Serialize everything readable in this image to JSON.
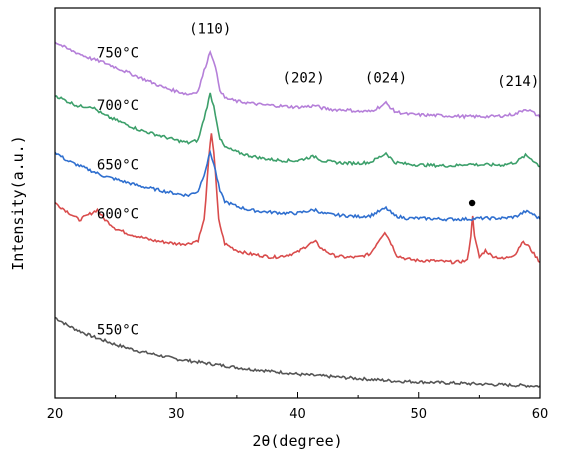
{
  "chart_data": {
    "type": "line",
    "xlabel": "2θ(degree)",
    "ylabel": "Intensity(a.u.)",
    "xlim": [
      20,
      60
    ],
    "xticks": [
      20,
      30,
      40,
      50,
      60
    ],
    "yticks": "none",
    "grid": false,
    "legend": "none",
    "series": [
      {
        "name": "550°C",
        "color": "#555555",
        "points": [
          [
            20,
            0.95
          ],
          [
            21,
            0.86
          ],
          [
            22,
            0.79
          ],
          [
            23,
            0.73
          ],
          [
            24,
            0.68
          ],
          [
            25,
            0.63
          ],
          [
            26,
            0.59
          ],
          [
            27,
            0.55
          ],
          [
            28,
            0.52
          ],
          [
            29,
            0.49
          ],
          [
            30,
            0.46
          ],
          [
            31,
            0.44
          ],
          [
            32,
            0.42
          ],
          [
            33,
            0.4
          ],
          [
            34,
            0.38
          ],
          [
            35,
            0.36
          ],
          [
            36,
            0.34
          ],
          [
            37,
            0.33
          ],
          [
            38,
            0.31
          ],
          [
            39,
            0.3
          ],
          [
            40,
            0.28
          ],
          [
            42,
            0.26
          ],
          [
            44,
            0.24
          ],
          [
            46,
            0.22
          ],
          [
            48,
            0.2
          ],
          [
            50,
            0.19
          ],
          [
            52,
            0.18
          ],
          [
            54,
            0.17
          ],
          [
            56,
            0.16
          ],
          [
            58,
            0.15
          ],
          [
            60,
            0.14
          ]
        ]
      },
      {
        "name": "600°C",
        "color": "#d94c4c",
        "points": [
          [
            20,
            2.3
          ],
          [
            21,
            2.2
          ],
          [
            22,
            2.1
          ],
          [
            23,
            2.18
          ],
          [
            23.5,
            2.22
          ],
          [
            24,
            2.12
          ],
          [
            25,
            2.0
          ],
          [
            26,
            1.94
          ],
          [
            27,
            1.9
          ],
          [
            28,
            1.86
          ],
          [
            29,
            1.84
          ],
          [
            30,
            1.82
          ],
          [
            31,
            1.82
          ],
          [
            31.8,
            1.86
          ],
          [
            32.3,
            2.1
          ],
          [
            32.7,
            2.85
          ],
          [
            32.9,
            3.13
          ],
          [
            33.1,
            2.9
          ],
          [
            33.5,
            2.1
          ],
          [
            34,
            1.82
          ],
          [
            35,
            1.74
          ],
          [
            36,
            1.7
          ],
          [
            37,
            1.68
          ],
          [
            38,
            1.66
          ],
          [
            39,
            1.68
          ],
          [
            40,
            1.72
          ],
          [
            41,
            1.82
          ],
          [
            41.5,
            1.84
          ],
          [
            42,
            1.76
          ],
          [
            43,
            1.68
          ],
          [
            44,
            1.66
          ],
          [
            45,
            1.66
          ],
          [
            46,
            1.7
          ],
          [
            46.8,
            1.88
          ],
          [
            47.2,
            1.96
          ],
          [
            47.6,
            1.86
          ],
          [
            48.2,
            1.68
          ],
          [
            49,
            1.64
          ],
          [
            50,
            1.62
          ],
          [
            51,
            1.62
          ],
          [
            52,
            1.61
          ],
          [
            53,
            1.6
          ],
          [
            54,
            1.62
          ],
          [
            54.3,
            1.92
          ],
          [
            54.45,
            2.16
          ],
          [
            54.6,
            1.9
          ],
          [
            55,
            1.66
          ],
          [
            55.5,
            1.74
          ],
          [
            56,
            1.68
          ],
          [
            57,
            1.64
          ],
          [
            58,
            1.7
          ],
          [
            58.5,
            1.84
          ],
          [
            59,
            1.8
          ],
          [
            60,
            1.6
          ]
        ]
      },
      {
        "name": "650°C",
        "color": "#2f6fcf",
        "points": [
          [
            20,
            2.9
          ],
          [
            21,
            2.8
          ],
          [
            22,
            2.74
          ],
          [
            23,
            2.68
          ],
          [
            24,
            2.62
          ],
          [
            25,
            2.58
          ],
          [
            26,
            2.54
          ],
          [
            27,
            2.5
          ],
          [
            28,
            2.47
          ],
          [
            29,
            2.44
          ],
          [
            30,
            2.41
          ],
          [
            31,
            2.39
          ],
          [
            31.8,
            2.44
          ],
          [
            32.3,
            2.64
          ],
          [
            32.8,
            2.9
          ],
          [
            33.1,
            2.76
          ],
          [
            33.6,
            2.44
          ],
          [
            34,
            2.32
          ],
          [
            35,
            2.26
          ],
          [
            36,
            2.22
          ],
          [
            37,
            2.2
          ],
          [
            38,
            2.19
          ],
          [
            39,
            2.18
          ],
          [
            40,
            2.18
          ],
          [
            41,
            2.21
          ],
          [
            41.5,
            2.22
          ],
          [
            42,
            2.18
          ],
          [
            43,
            2.16
          ],
          [
            44,
            2.15
          ],
          [
            45,
            2.14
          ],
          [
            46,
            2.15
          ],
          [
            47,
            2.22
          ],
          [
            47.3,
            2.24
          ],
          [
            48,
            2.15
          ],
          [
            49,
            2.12
          ],
          [
            50,
            2.12
          ],
          [
            52,
            2.11
          ],
          [
            54,
            2.11
          ],
          [
            55,
            2.12
          ],
          [
            56,
            2.12
          ],
          [
            57,
            2.12
          ],
          [
            58,
            2.14
          ],
          [
            58.8,
            2.2
          ],
          [
            59.3,
            2.18
          ],
          [
            60,
            2.11
          ]
        ]
      },
      {
        "name": "700°C",
        "color": "#3c9f6a",
        "points": [
          [
            20,
            3.57
          ],
          [
            21,
            3.5
          ],
          [
            22,
            3.44
          ],
          [
            23,
            3.44
          ],
          [
            24,
            3.34
          ],
          [
            25,
            3.28
          ],
          [
            26,
            3.22
          ],
          [
            27,
            3.16
          ],
          [
            28,
            3.12
          ],
          [
            29,
            3.08
          ],
          [
            30,
            3.04
          ],
          [
            31,
            3.01
          ],
          [
            31.8,
            3.04
          ],
          [
            32.3,
            3.3
          ],
          [
            32.8,
            3.59
          ],
          [
            33.1,
            3.44
          ],
          [
            33.6,
            3.06
          ],
          [
            34,
            2.96
          ],
          [
            35,
            2.9
          ],
          [
            36,
            2.86
          ],
          [
            37,
            2.83
          ],
          [
            38,
            2.81
          ],
          [
            39,
            2.8
          ],
          [
            40,
            2.8
          ],
          [
            41,
            2.84
          ],
          [
            41.5,
            2.85
          ],
          [
            42,
            2.8
          ],
          [
            43,
            2.78
          ],
          [
            44,
            2.77
          ],
          [
            45,
            2.77
          ],
          [
            46,
            2.78
          ],
          [
            47,
            2.86
          ],
          [
            47.3,
            2.89
          ],
          [
            48,
            2.78
          ],
          [
            49,
            2.76
          ],
          [
            50,
            2.75
          ],
          [
            52,
            2.74
          ],
          [
            53,
            2.74
          ],
          [
            54,
            2.76
          ],
          [
            55,
            2.75
          ],
          [
            56,
            2.75
          ],
          [
            57,
            2.75
          ],
          [
            58,
            2.78
          ],
          [
            58.8,
            2.86
          ],
          [
            59.3,
            2.82
          ],
          [
            60,
            2.73
          ]
        ]
      },
      {
        "name": "750°C",
        "color": "#b57fd9",
        "points": [
          [
            20,
            4.2
          ],
          [
            21,
            4.12
          ],
          [
            22,
            4.06
          ],
          [
            23,
            4.0
          ],
          [
            24,
            3.96
          ],
          [
            25,
            3.9
          ],
          [
            26,
            3.84
          ],
          [
            27,
            3.78
          ],
          [
            28,
            3.72
          ],
          [
            29,
            3.66
          ],
          [
            30,
            3.62
          ],
          [
            31,
            3.58
          ],
          [
            31.8,
            3.62
          ],
          [
            32.3,
            3.86
          ],
          [
            32.8,
            4.09
          ],
          [
            33.1,
            3.98
          ],
          [
            33.6,
            3.64
          ],
          [
            34,
            3.54
          ],
          [
            35,
            3.5
          ],
          [
            36,
            3.48
          ],
          [
            37,
            3.46
          ],
          [
            38,
            3.45
          ],
          [
            39,
            3.44
          ],
          [
            40,
            3.43
          ],
          [
            41,
            3.44
          ],
          [
            41.5,
            3.45
          ],
          [
            42,
            3.42
          ],
          [
            43,
            3.4
          ],
          [
            44,
            3.4
          ],
          [
            45,
            3.38
          ],
          [
            46,
            3.38
          ],
          [
            47,
            3.45
          ],
          [
            47.3,
            3.48
          ],
          [
            48,
            3.38
          ],
          [
            49,
            3.35
          ],
          [
            50,
            3.34
          ],
          [
            52,
            3.33
          ],
          [
            54,
            3.32
          ],
          [
            55,
            3.32
          ],
          [
            56,
            3.32
          ],
          [
            57,
            3.33
          ],
          [
            58,
            3.35
          ],
          [
            58.8,
            3.41
          ],
          [
            59.3,
            3.38
          ],
          [
            60,
            3.31
          ]
        ]
      }
    ],
    "peak_labels": [
      {
        "text": "(110)",
        "x": 32.8,
        "y": 4.3
      },
      {
        "text": "(202)",
        "x": 40.5,
        "y": 3.72
      },
      {
        "text": "(024)",
        "x": 47.3,
        "y": 3.72
      },
      {
        "text": "(214)",
        "x": 58.2,
        "y": 3.68
      }
    ],
    "marker": {
      "symbol": "●",
      "x": 54.4,
      "y": 2.3
    }
  }
}
